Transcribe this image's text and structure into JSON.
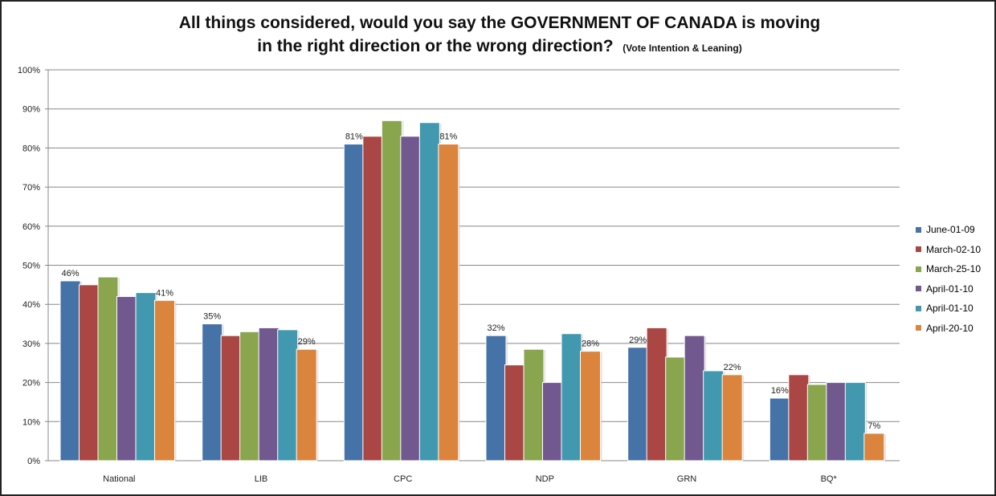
{
  "chart_data": {
    "type": "bar",
    "title": "All things considered, would you say the GOVERNMENT OF CANADA is moving in the right direction or the wrong direction?",
    "title_line1": "All things considered, would you say the GOVERNMENT OF CANADA is moving",
    "title_line2": "in the right direction or the wrong direction?",
    "subtitle": "(Vote Intention & Leaning)",
    "categories": [
      "National",
      "LIB",
      "CPC",
      "NDP",
      "GRN",
      "BQ*"
    ],
    "ylim": [
      0,
      100
    ],
    "yticks": [
      "0%",
      "10%",
      "20%",
      "30%",
      "40%",
      "50%",
      "60%",
      "70%",
      "80%",
      "90%",
      "100%"
    ],
    "grid": true,
    "legend_position": "right",
    "series": [
      {
        "name": "June-01-09",
        "color": "#4572A7",
        "values": [
          46,
          35,
          81,
          32,
          29,
          16
        ]
      },
      {
        "name": "March-02-10",
        "color": "#AA4643",
        "values": [
          45,
          32,
          83,
          24.5,
          34,
          22
        ]
      },
      {
        "name": "March-25-10",
        "color": "#89A54E",
        "values": [
          47,
          33,
          87,
          28.5,
          26.5,
          19.5
        ]
      },
      {
        "name": "April-01-10",
        "color": "#71588F",
        "values": [
          42,
          34,
          83,
          20,
          32,
          20
        ]
      },
      {
        "name": "April-01-10",
        "color": "#4198AF",
        "values": [
          43,
          33.5,
          86.5,
          32.5,
          23,
          20
        ]
      },
      {
        "name": "April-20-10",
        "color": "#DB843D",
        "values": [
          41,
          28.5,
          81,
          28,
          22,
          7
        ]
      }
    ],
    "data_labels": [
      {
        "series": 0,
        "labels": [
          "46%",
          "35%",
          "81%",
          "32%",
          "29%",
          "16%"
        ]
      },
      {
        "series": 5,
        "labels": [
          "41%",
          "29%",
          "81%",
          "28%",
          "22%",
          "7%"
        ]
      }
    ]
  }
}
